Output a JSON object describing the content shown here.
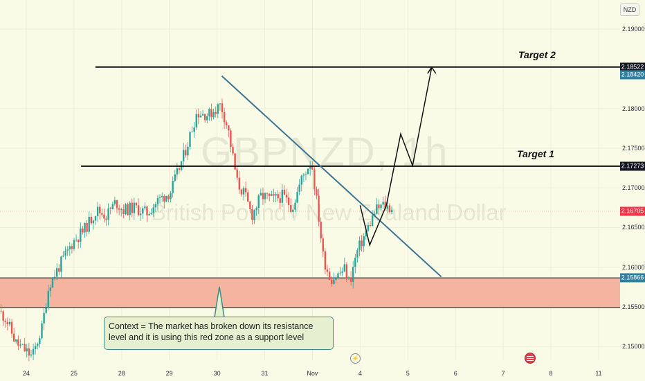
{
  "chart_data": {
    "type": "candlestick",
    "symbol": "GBPNZD, 1h",
    "name": "British Pound / New Zealand Dollar",
    "currency": "NZD",
    "y_ticks": [
      "2.19000",
      "2.18000",
      "2.17500",
      "2.17000",
      "2.16500",
      "2.16000",
      "2.15500",
      "2.15000"
    ],
    "y_tick_values": [
      2.19,
      2.18,
      2.175,
      2.17,
      2.165,
      2.16,
      2.155,
      2.15
    ],
    "x_ticks": [
      "24",
      "25",
      "28",
      "29",
      "30",
      "31",
      "Nov",
      "4",
      "5",
      "6",
      "7",
      "8",
      "11"
    ],
    "x_tick_index": [
      0,
      1,
      2,
      3,
      4,
      5,
      6,
      7,
      8,
      9,
      10,
      11,
      12
    ],
    "ylim": [
      2.14828,
      2.19367
    ],
    "xlim": [
      -0.55,
      12.45
    ],
    "price_tags": [
      {
        "label": "2.18522",
        "value": 2.18522,
        "color": "#131722"
      },
      {
        "label": "2.18420",
        "value": 2.1842,
        "color": "#2f7fa0"
      },
      {
        "label": "2.17273",
        "value": 2.17273,
        "color": "#131722"
      },
      {
        "label": "2.16705",
        "value": 2.16705,
        "color": "#f23645"
      },
      {
        "label": "2.15866",
        "value": 2.15866,
        "color": "#2f7fa0"
      }
    ],
    "current_price": 2.16705,
    "support_zone": [
      2.15493,
      2.15866
    ],
    "levels": [
      {
        "label": "Target 2",
        "value": 2.18522
      },
      {
        "label": "Target 1",
        "value": 2.17273
      }
    ],
    "trendline": {
      "from": [
        4.1,
        2.1841
      ],
      "to": [
        8.7,
        2.1588
      ]
    },
    "projected_path": [
      [
        7.0,
        2.1678
      ],
      [
        7.2,
        2.1628
      ],
      [
        7.55,
        2.1678
      ],
      [
        7.85,
        2.1768
      ],
      [
        8.1,
        2.1728
      ],
      [
        8.5,
        2.1852
      ]
    ],
    "anchors": [
      [
        -0.55,
        2.1545
      ],
      [
        -0.4,
        2.1535
      ],
      [
        -0.2,
        2.1505
      ],
      [
        0,
        2.1495
      ],
      [
        0.15,
        2.1487
      ],
      [
        0.35,
        2.1523
      ],
      [
        0.5,
        2.1578
      ],
      [
        0.75,
        2.1605
      ],
      [
        1,
        2.1632
      ],
      [
        1.25,
        2.1648
      ],
      [
        1.5,
        2.1672
      ],
      [
        1.7,
        2.1665
      ],
      [
        1.9,
        2.1682
      ],
      [
        2.05,
        2.1672
      ],
      [
        2.3,
        2.1675
      ],
      [
        2.55,
        2.1668
      ],
      [
        2.8,
        2.1685
      ],
      [
        3.05,
        2.1695
      ],
      [
        3.35,
        2.1745
      ],
      [
        3.6,
        2.1795
      ],
      [
        3.85,
        2.1792
      ],
      [
        4.1,
        2.1805
      ],
      [
        4.25,
        2.1775
      ],
      [
        4.45,
        2.1705
      ],
      [
        4.6,
        2.1692
      ],
      [
        4.75,
        2.1665
      ],
      [
        4.95,
        2.169
      ],
      [
        5.2,
        2.1685
      ],
      [
        5.4,
        2.169
      ],
      [
        5.6,
        2.1675
      ],
      [
        5.8,
        2.1712
      ],
      [
        6.0,
        2.1735
      ],
      [
        6.15,
        2.1665
      ],
      [
        6.25,
        2.1612
      ],
      [
        6.4,
        2.1585
      ],
      [
        6.55,
        2.159
      ],
      [
        6.7,
        2.1598
      ],
      [
        6.8,
        2.158
      ],
      [
        6.95,
        2.1618
      ],
      [
        7.15,
        2.1645
      ],
      [
        7.35,
        2.1672
      ],
      [
        7.5,
        2.1678
      ],
      [
        7.65,
        2.1675
      ]
    ]
  },
  "annotation": {
    "text": "Context = The market has broken down its resistance level and it is using this red zone as a support level"
  },
  "colors": {
    "up": "#26a69a",
    "down": "#ef5350",
    "zone": "#f5b49f",
    "trendline": "#3b7390",
    "background": "#fafbe6",
    "note_border": "#3d8a8a",
    "note_bg": "#e6efcf"
  }
}
